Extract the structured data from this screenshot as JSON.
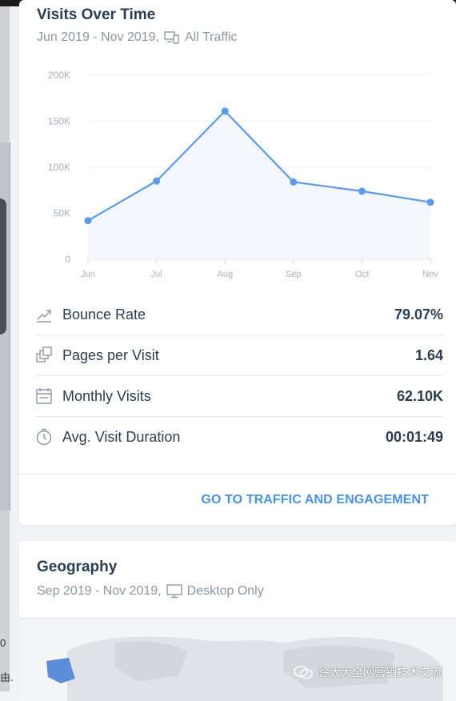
{
  "visits": {
    "title": "Visits Over Time",
    "date_range": "Jun 2019 - Nov 2019,",
    "traffic_filter": "All Traffic"
  },
  "chart_data": {
    "type": "area",
    "categories": [
      "Jun",
      "Jul",
      "Aug",
      "Sep",
      "Oct",
      "Nov"
    ],
    "values": [
      42000,
      85000,
      161000,
      84000,
      74000,
      62000
    ],
    "y_ticks": [
      "0",
      "50K",
      "100K",
      "150K",
      "200K"
    ],
    "ylim": [
      0,
      200000
    ],
    "color": "#5b9bea",
    "fill": "#f3f6fc",
    "grid": true
  },
  "metrics": [
    {
      "icon": "bounce-rate-icon",
      "label": "Bounce Rate",
      "value": "79.07%"
    },
    {
      "icon": "pages-per-visit-icon",
      "label": "Pages per Visit",
      "value": "1.64"
    },
    {
      "icon": "calendar-icon",
      "label": "Monthly Visits",
      "value": "62.10K"
    },
    {
      "icon": "stopwatch-icon",
      "label": "Avg. Visit Duration",
      "value": "00:01:49"
    }
  ],
  "cta_label": "GO TO TRAFFIC AND ENGAGEMENT",
  "geography": {
    "title": "Geography",
    "date_range": "Sep 2019 - Nov 2019,",
    "device_filter": "Desktop Only"
  },
  "watermark": "徐大大全网营销技术交流",
  "edge_chars": [
    "0",
    "由."
  ],
  "colors": {
    "accent": "#4a90e2",
    "text": "#2a3e52",
    "muted": "#8b97a3"
  }
}
